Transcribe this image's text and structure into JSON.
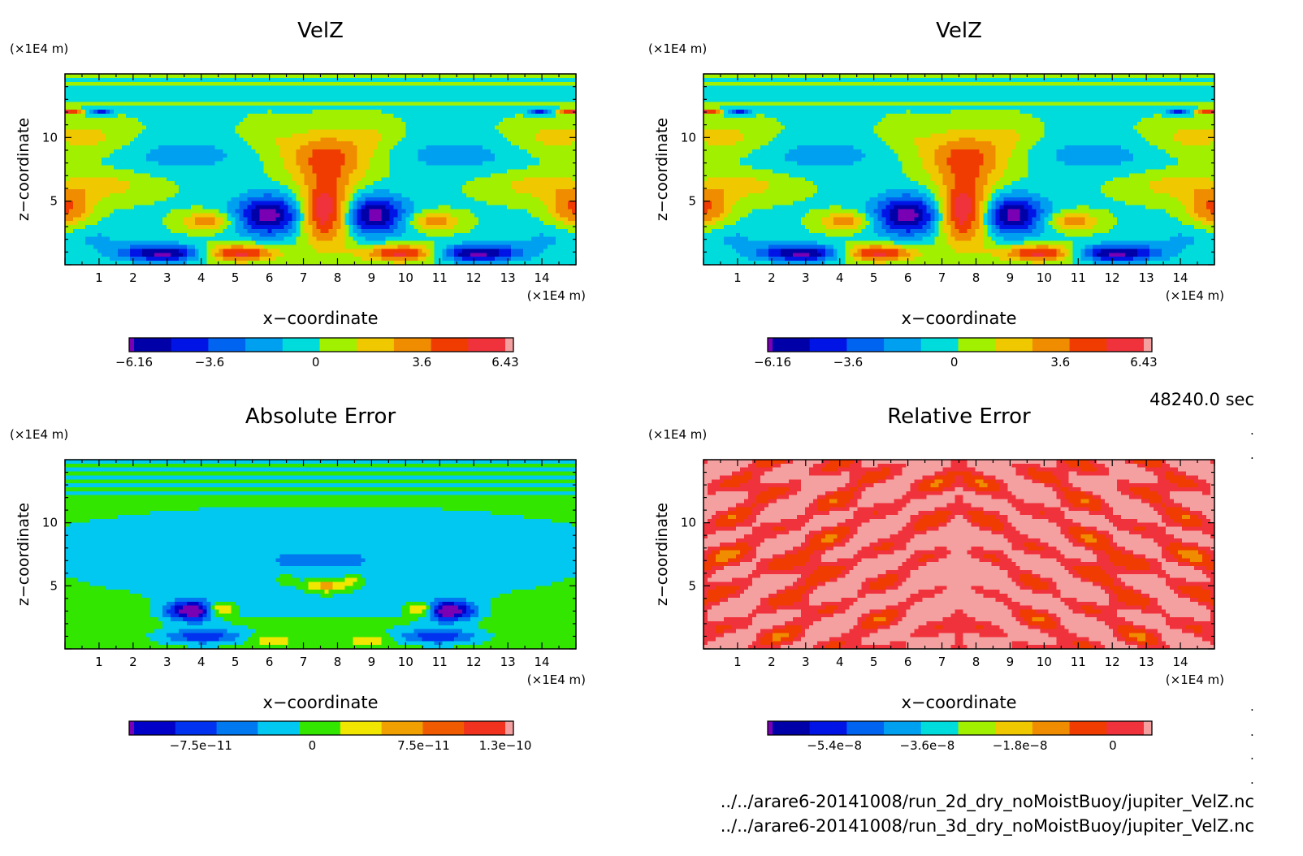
{
  "time_label": "48240.0 sec",
  "files": [
    "../../arare6-20141008/run_2d_dry_noMoistBuoy/jupiter_VelZ.nc",
    "../../arare6-20141008/run_3d_dry_noMoistBuoy/jupiter_VelZ.nc"
  ],
  "chart_data": [
    {
      "type": "heatmap",
      "title": "VelZ",
      "xlabel": "x−coordinate",
      "ylabel": "z−coordinate",
      "x_unit": "(×1E4 m)",
      "y_unit": "(×1E4 m)",
      "xlim": [
        0,
        15
      ],
      "ylim": [
        0,
        15
      ],
      "x_ticks": [
        1,
        2,
        3,
        4,
        5,
        6,
        7,
        8,
        9,
        10,
        11,
        12,
        13,
        14
      ],
      "y_ticks": [
        5,
        10
      ],
      "field": "velz",
      "colorbar": {
        "range": [
          -6.16,
          6.43
        ],
        "tick_labels": [
          "−6.16",
          "−3.6",
          "0",
          "3.6",
          "6.43"
        ],
        "tick_values": [
          -6.16,
          -3.6,
          0,
          3.6,
          6.43
        ],
        "colors": [
          "#7a00b4",
          "#0000a8",
          "#0014e6",
          "#0064f0",
          "#00a0f0",
          "#00dcdc",
          "#a0f000",
          "#f0c800",
          "#f08c00",
          "#f03c00",
          "#f0323c",
          "#f5a0a0"
        ]
      }
    },
    {
      "type": "heatmap",
      "title": "VelZ",
      "xlabel": "x−coordinate",
      "ylabel": "z−coordinate",
      "x_unit": "(×1E4 m)",
      "y_unit": "(×1E4 m)",
      "xlim": [
        0,
        15
      ],
      "ylim": [
        0,
        15
      ],
      "x_ticks": [
        1,
        2,
        3,
        4,
        5,
        6,
        7,
        8,
        9,
        10,
        11,
        12,
        13,
        14
      ],
      "y_ticks": [
        5,
        10
      ],
      "field": "velz",
      "colorbar": {
        "range": [
          -6.16,
          6.43
        ],
        "tick_labels": [
          "−6.16",
          "−3.6",
          "0",
          "3.6",
          "6.43"
        ],
        "tick_values": [
          -6.16,
          -3.6,
          0,
          3.6,
          6.43
        ],
        "colors": [
          "#7a00b4",
          "#0000a8",
          "#0014e6",
          "#0064f0",
          "#00a0f0",
          "#00dcdc",
          "#a0f000",
          "#f0c800",
          "#f08c00",
          "#f03c00",
          "#f0323c",
          "#f5a0a0"
        ]
      }
    },
    {
      "type": "heatmap",
      "title": "Absolute Error",
      "xlabel": "x−coordinate",
      "ylabel": "z−coordinate",
      "x_unit": "(×1E4 m)",
      "y_unit": "(×1E4 m)",
      "xlim": [
        0,
        15
      ],
      "ylim": [
        0,
        15
      ],
      "x_ticks": [
        1,
        2,
        3,
        4,
        5,
        6,
        7,
        8,
        9,
        10,
        11,
        12,
        13,
        14
      ],
      "y_ticks": [
        5,
        10
      ],
      "field": "abserr",
      "colorbar": {
        "range": [
          -1.2e-10,
          1.3e-10
        ],
        "tick_labels": [
          "−7.5e−11",
          "0",
          "7.5e−11",
          "1.3e−10"
        ],
        "tick_values": [
          -7.5e-11,
          0,
          7.5e-11,
          1.3e-10
        ],
        "colors": [
          "#7a00b4",
          "#0000c8",
          "#0032f0",
          "#0078f0",
          "#00c8f0",
          "#32e600",
          "#f0e600",
          "#f0a000",
          "#f05a00",
          "#f0321e",
          "#f5a0a0"
        ]
      }
    },
    {
      "type": "heatmap",
      "title": "Relative Error",
      "xlabel": "x−coordinate",
      "ylabel": "z−coordinate",
      "x_unit": "(×1E4 m)",
      "y_unit": "(×1E4 m)",
      "xlim": [
        0,
        15
      ],
      "ylim": [
        0,
        15
      ],
      "x_ticks": [
        1,
        2,
        3,
        4,
        5,
        6,
        7,
        8,
        9,
        10,
        11,
        12,
        13,
        14
      ],
      "y_ticks": [
        5,
        10
      ],
      "field": "relerr",
      "colorbar": {
        "range": [
          -6.6e-08,
          6e-09
        ],
        "tick_labels": [
          "−5.4e−8",
          "−3.6e−8",
          "−1.8e−8",
          "0"
        ],
        "tick_values": [
          -5.4e-08,
          -3.6e-08,
          -1.8e-08,
          0
        ],
        "colors": [
          "#7a00b4",
          "#0000a8",
          "#0014e6",
          "#0064f0",
          "#00a0f0",
          "#00dcdc",
          "#a0f000",
          "#f0c800",
          "#f08c00",
          "#f03c00",
          "#f0323c",
          "#f5a0a0"
        ]
      }
    }
  ]
}
